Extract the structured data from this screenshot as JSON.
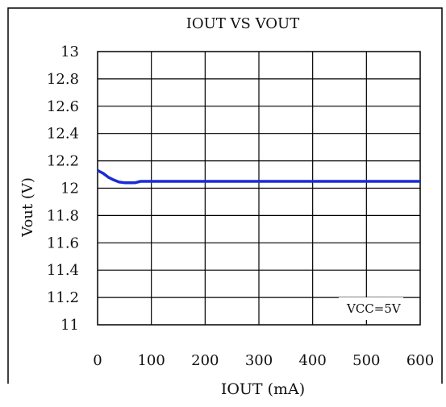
{
  "chart_data": {
    "type": "line",
    "title": "IOUT VS VOUT",
    "xlabel": "IOUT (mA)",
    "ylabel": "Vout (V)",
    "xlim": [
      0,
      600
    ],
    "ylim": [
      11,
      13
    ],
    "x_ticks": [
      0,
      100,
      200,
      300,
      400,
      500,
      600
    ],
    "y_ticks": [
      11,
      11.2,
      11.4,
      11.6,
      11.8,
      12,
      12.2,
      12.4,
      12.6,
      12.8,
      13
    ],
    "x_tick_labels": [
      "0",
      "100",
      "200",
      "300",
      "400",
      "500",
      "600"
    ],
    "y_tick_labels": [
      "11",
      "11.2",
      "11.4",
      "11.6",
      "11.8",
      "12",
      "12.2",
      "12.4",
      "12.6",
      "12.8",
      "13"
    ],
    "grid": true,
    "annotation": "VCC=5V",
    "series": [
      {
        "color": "#1a2bd6",
        "x": [
          0,
          10,
          20,
          30,
          40,
          50,
          60,
          70,
          80,
          90,
          100,
          200,
          300,
          400,
          500,
          600
        ],
        "y": [
          12.13,
          12.11,
          12.08,
          12.06,
          12.045,
          12.04,
          12.04,
          12.04,
          12.05,
          12.05,
          12.05,
          12.05,
          12.05,
          12.05,
          12.05,
          12.05
        ]
      }
    ]
  }
}
